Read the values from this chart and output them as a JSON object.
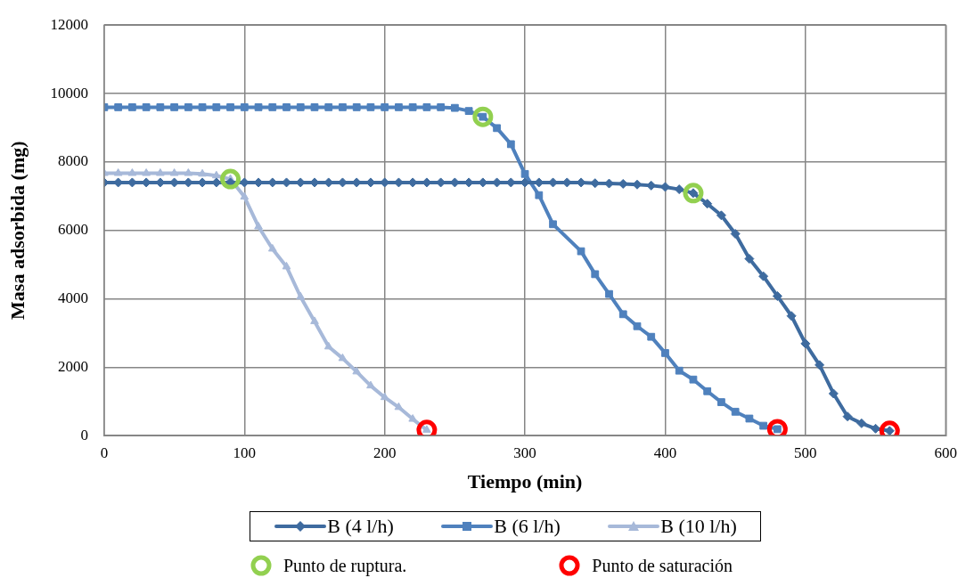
{
  "chart_data": {
    "type": "line",
    "xlabel": "Tiempo (min)",
    "ylabel": "Masa adsorbida (mg)",
    "xlim": [
      0,
      600
    ],
    "xticks": [
      0,
      100,
      200,
      300,
      400,
      500,
      600
    ],
    "ylim": [
      0,
      12000
    ],
    "yticks": [
      0,
      2000,
      4000,
      6000,
      8000,
      10000,
      12000
    ],
    "grid": true,
    "legend": "bottom",
    "line_style": "solid",
    "series": [
      {
        "name": "B (4 l/h)",
        "color": "#3e6b9f",
        "marker": "diamond",
        "x": [
          0,
          10,
          20,
          30,
          40,
          50,
          60,
          70,
          80,
          90,
          100,
          110,
          120,
          130,
          140,
          150,
          160,
          170,
          180,
          190,
          200,
          210,
          220,
          230,
          240,
          250,
          260,
          270,
          280,
          290,
          300,
          310,
          320,
          330,
          340,
          350,
          360,
          370,
          380,
          390,
          400,
          410,
          420,
          430,
          440,
          450,
          460,
          470,
          480,
          490,
          500,
          510,
          520,
          530,
          540,
          550,
          560
        ],
        "values": [
          7400,
          7400,
          7400,
          7400,
          7400,
          7400,
          7400,
          7400,
          7400,
          7400,
          7400,
          7400,
          7400,
          7400,
          7400,
          7400,
          7400,
          7400,
          7400,
          7400,
          7400,
          7400,
          7400,
          7400,
          7400,
          7400,
          7400,
          7400,
          7400,
          7400,
          7400,
          7400,
          7400,
          7400,
          7400,
          7380,
          7370,
          7360,
          7340,
          7310,
          7270,
          7200,
          7090,
          6780,
          6440,
          5900,
          5170,
          4660,
          4080,
          3500,
          2690,
          2065,
          1230,
          560,
          360,
          205,
          140
        ]
      },
      {
        "name": "B (6 l/h)",
        "color": "#4f81bd",
        "marker": "square",
        "x": [
          0,
          10,
          20,
          30,
          40,
          50,
          60,
          70,
          80,
          90,
          100,
          110,
          120,
          130,
          140,
          150,
          160,
          170,
          180,
          190,
          200,
          210,
          220,
          230,
          240,
          250,
          260,
          270,
          280,
          290,
          300,
          310,
          320,
          340,
          350,
          360,
          370,
          380,
          390,
          400,
          410,
          420,
          430,
          440,
          450,
          460,
          470,
          480
        ],
        "values": [
          9600,
          9600,
          9600,
          9600,
          9600,
          9600,
          9600,
          9600,
          9600,
          9600,
          9600,
          9600,
          9600,
          9600,
          9600,
          9600,
          9600,
          9600,
          9600,
          9600,
          9600,
          9600,
          9600,
          9600,
          9600,
          9580,
          9490,
          9320,
          8990,
          8520,
          7650,
          7030,
          6180,
          5390,
          4720,
          4140,
          3550,
          3200,
          2890,
          2415,
          1900,
          1640,
          1300,
          980,
          700,
          500,
          290,
          190
        ]
      },
      {
        "name": "B (10 l/h)",
        "color": "#a7b9d9",
        "marker": "triangle",
        "x": [
          0,
          10,
          20,
          30,
          40,
          50,
          60,
          70,
          80,
          90,
          100,
          110,
          120,
          130,
          140,
          150,
          160,
          170,
          180,
          190,
          200,
          210,
          220,
          230
        ],
        "values": [
          7670,
          7670,
          7670,
          7670,
          7670,
          7670,
          7670,
          7650,
          7600,
          7500,
          6980,
          6110,
          5460,
          4940,
          4060,
          3340,
          2600,
          2260,
          1870,
          1460,
          1120,
          830,
          485,
          165
        ]
      },
      {
        "name": "Punto de ruptura.",
        "type": "scatter",
        "color": "#92d050",
        "marker": "circle",
        "x": [
          90,
          270,
          420
        ],
        "values": [
          7500,
          9320,
          7090
        ]
      },
      {
        "name": "Punto de saturación",
        "type": "scatter",
        "color": "#ff0000",
        "marker": "circle",
        "x": [
          230,
          480,
          560
        ],
        "values": [
          165,
          190,
          140
        ]
      }
    ]
  }
}
